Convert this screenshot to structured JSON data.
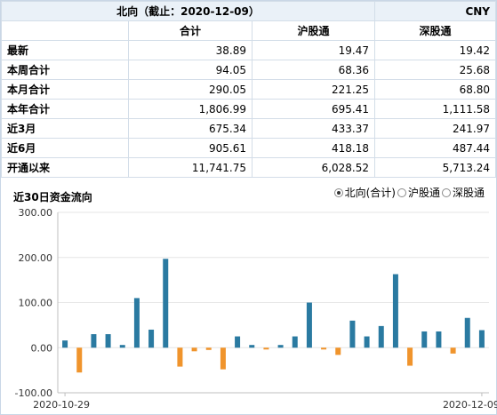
{
  "table": {
    "title": "北向（截止：2020-12-09）",
    "currency": "CNY",
    "columns": [
      "",
      "合计",
      "沪股通",
      "深股通"
    ],
    "rows": [
      {
        "label": "最新",
        "values": [
          "38.89",
          "19.47",
          "19.42"
        ]
      },
      {
        "label": "本周合计",
        "values": [
          "94.05",
          "68.36",
          "25.68"
        ]
      },
      {
        "label": "本月合计",
        "values": [
          "290.05",
          "221.25",
          "68.80"
        ]
      },
      {
        "label": "本年合计",
        "values": [
          "1,806.99",
          "695.41",
          "1,111.58"
        ]
      },
      {
        "label": "近3月",
        "values": [
          "675.34",
          "433.37",
          "241.97"
        ]
      },
      {
        "label": "近6月",
        "values": [
          "905.61",
          "418.18",
          "487.44"
        ]
      },
      {
        "label": "开通以来",
        "values": [
          "11,741.75",
          "6,028.52",
          "5,713.24"
        ]
      }
    ]
  },
  "chart_section": {
    "title": "近30日资金流向",
    "legend": [
      {
        "label": "北向(合计)",
        "checked": true
      },
      {
        "label": "沪股通",
        "checked": false
      },
      {
        "label": "深股通",
        "checked": false
      }
    ]
  },
  "colors": {
    "positive": "#2a7aa1",
    "negative": "#f0942c",
    "grid": "#e6e6e6",
    "axis": "#bfbfbf"
  },
  "chart_data": {
    "type": "bar",
    "title": "近30日资金流向",
    "xlabel": "",
    "ylabel": "",
    "ylim": [
      -100,
      300
    ],
    "yticks": [
      "-100.00",
      "0.00",
      "100.00",
      "200.00",
      "300.00"
    ],
    "x_tick_labels": [
      "2020-10-29",
      "2020-12-09"
    ],
    "grid": true,
    "values": [
      16,
      -55,
      30,
      30,
      6,
      110,
      40,
      197,
      -42,
      -8,
      -5,
      -48,
      25,
      6,
      -4,
      6,
      25,
      100,
      -4,
      -16,
      60,
      25,
      48,
      163,
      -40,
      36,
      36,
      -13,
      66,
      38.89
    ]
  }
}
